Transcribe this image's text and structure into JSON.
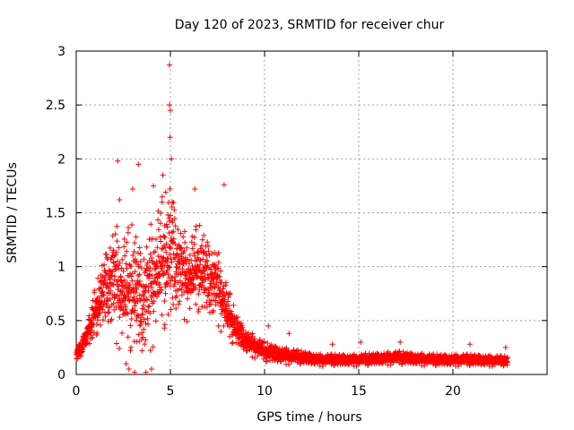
{
  "chart_data": {
    "type": "scatter",
    "title": "Day 120 of 2023, SRMTID for receiver chur",
    "xlabel": "GPS time / hours",
    "ylabel": "SRMTID / TECUs",
    "xlim": [
      0,
      25
    ],
    "ylim": [
      0,
      3
    ],
    "xticks": [
      0,
      5,
      10,
      15,
      20
    ],
    "yticks": [
      0,
      0.5,
      1,
      1.5,
      2,
      2.5,
      3
    ],
    "xtick_labels": [
      "0",
      "5",
      "10",
      "15",
      "20"
    ],
    "ytick_labels": [
      "0",
      "0.5",
      "1",
      "1.5",
      "2",
      "2.5",
      "3"
    ],
    "grid": true,
    "marker": "plus",
    "color": "#ff0000",
    "series": [
      {
        "name": "SRMTID",
        "envelope": [
          {
            "x": 0.0,
            "mean": 0.18,
            "spread": 0.1
          },
          {
            "x": 0.5,
            "mean": 0.35,
            "spread": 0.15
          },
          {
            "x": 1.0,
            "mean": 0.55,
            "spread": 0.3
          },
          {
            "x": 1.5,
            "mean": 0.75,
            "spread": 0.45
          },
          {
            "x": 2.0,
            "mean": 0.85,
            "spread": 0.7
          },
          {
            "x": 2.5,
            "mean": 0.7,
            "spread": 0.7
          },
          {
            "x": 3.0,
            "mean": 0.75,
            "spread": 0.8
          },
          {
            "x": 3.5,
            "mean": 0.6,
            "spread": 0.7
          },
          {
            "x": 4.0,
            "mean": 0.8,
            "spread": 0.75
          },
          {
            "x": 4.5,
            "mean": 0.95,
            "spread": 0.8
          },
          {
            "x": 5.0,
            "mean": 1.05,
            "spread": 0.9
          },
          {
            "x": 5.5,
            "mean": 0.95,
            "spread": 0.55
          },
          {
            "x": 6.0,
            "mean": 0.85,
            "spread": 0.5
          },
          {
            "x": 6.5,
            "mean": 0.95,
            "spread": 0.55
          },
          {
            "x": 7.0,
            "mean": 0.85,
            "spread": 0.5
          },
          {
            "x": 7.5,
            "mean": 0.8,
            "spread": 0.45
          },
          {
            "x": 8.0,
            "mean": 0.55,
            "spread": 0.35
          },
          {
            "x": 8.5,
            "mean": 0.4,
            "spread": 0.2
          },
          {
            "x": 9.0,
            "mean": 0.3,
            "spread": 0.15
          },
          {
            "x": 10.0,
            "mean": 0.2,
            "spread": 0.12
          },
          {
            "x": 11.0,
            "mean": 0.17,
            "spread": 0.1
          },
          {
            "x": 12.0,
            "mean": 0.15,
            "spread": 0.08
          },
          {
            "x": 13.0,
            "mean": 0.13,
            "spread": 0.07
          },
          {
            "x": 15.0,
            "mean": 0.13,
            "spread": 0.07
          },
          {
            "x": 17.0,
            "mean": 0.15,
            "spread": 0.08
          },
          {
            "x": 19.0,
            "mean": 0.13,
            "spread": 0.07
          },
          {
            "x": 21.0,
            "mean": 0.13,
            "spread": 0.07
          },
          {
            "x": 22.9,
            "mean": 0.12,
            "spread": 0.06
          }
        ],
        "outliers": [
          [
            4.95,
            2.87
          ],
          [
            4.95,
            2.5
          ],
          [
            5.0,
            2.45
          ],
          [
            4.98,
            2.2
          ],
          [
            5.05,
            2.0
          ],
          [
            2.2,
            1.98
          ],
          [
            3.3,
            1.95
          ],
          [
            3.0,
            1.72
          ],
          [
            6.3,
            1.72
          ],
          [
            7.85,
            1.76
          ],
          [
            4.6,
            1.85
          ],
          [
            2.3,
            1.62
          ],
          [
            5.1,
            1.6
          ],
          [
            4.1,
            1.75
          ],
          [
            4.7,
            1.38
          ],
          [
            2.8,
            0.05
          ],
          [
            3.1,
            0.02
          ],
          [
            3.7,
            0.02
          ],
          [
            4.0,
            0.05
          ],
          [
            2.65,
            0.1
          ],
          [
            10.2,
            0.45
          ],
          [
            11.3,
            0.38
          ],
          [
            17.2,
            0.3
          ],
          [
            20.9,
            0.28
          ],
          [
            22.8,
            0.25
          ],
          [
            15.1,
            0.3
          ],
          [
            13.6,
            0.28
          ]
        ],
        "x_end": 22.9,
        "n_points": 2800
      }
    ]
  }
}
